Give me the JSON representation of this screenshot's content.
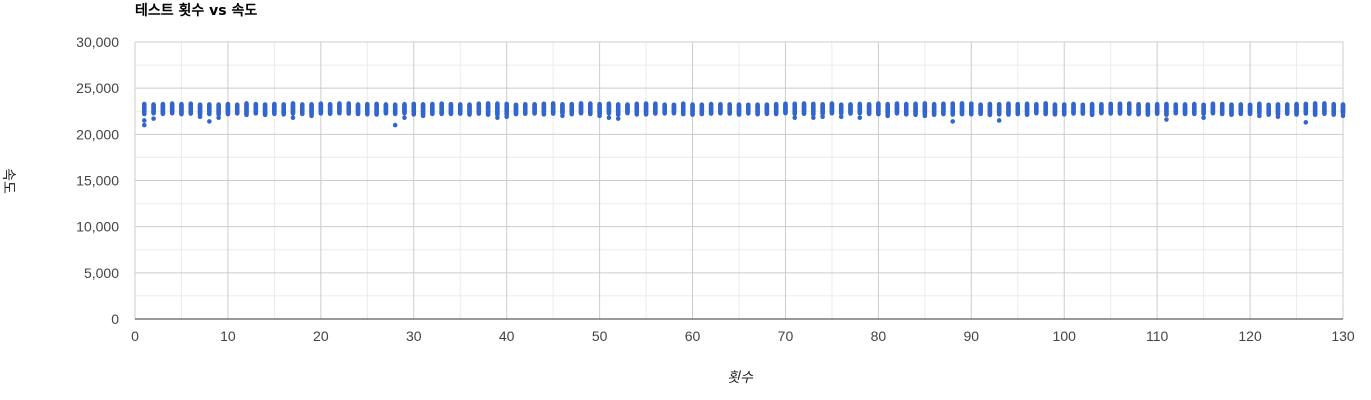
{
  "chart_data": {
    "type": "scatter",
    "title": "테스트 횟수 vs 속도",
    "xlabel": "횟수",
    "ylabel": "속도",
    "xlim": [
      0,
      130
    ],
    "ylim": [
      0,
      30000
    ],
    "x_ticks": [
      0,
      10,
      20,
      30,
      40,
      50,
      60,
      70,
      80,
      90,
      100,
      110,
      120,
      130
    ],
    "y_ticks": [
      0,
      5000,
      10000,
      15000,
      20000,
      25000,
      30000
    ],
    "x_tick_labels": [
      "0",
      "10",
      "20",
      "30",
      "40",
      "50",
      "60",
      "70",
      "80",
      "90",
      "100",
      "110",
      "120",
      "130"
    ],
    "y_tick_labels": [
      "0",
      "5,000",
      "10,000",
      "15,000",
      "20,000",
      "25,000",
      "30,000"
    ],
    "grid": true,
    "legend": "none",
    "point_color": "#3366cc",
    "series": [
      {
        "band": [
          22300,
          23200
        ],
        "outliers": [
          [
            1,
            21000
          ],
          [
            1,
            21500
          ],
          [
            2,
            21700
          ],
          [
            7,
            21900
          ],
          [
            8,
            21400
          ],
          [
            9,
            21800
          ],
          [
            17,
            21800
          ],
          [
            19,
            22000
          ],
          [
            28,
            21000
          ],
          [
            29,
            21800
          ],
          [
            31,
            22000
          ],
          [
            39,
            21800
          ],
          [
            40,
            21900
          ],
          [
            46,
            22000
          ],
          [
            50,
            22000
          ],
          [
            51,
            21800
          ],
          [
            52,
            21700
          ],
          [
            71,
            21800
          ],
          [
            73,
            21800
          ],
          [
            74,
            21900
          ],
          [
            76,
            21900
          ],
          [
            78,
            21800
          ],
          [
            81,
            22000
          ],
          [
            85,
            22000
          ],
          [
            88,
            21400
          ],
          [
            93,
            21500
          ],
          [
            111,
            21600
          ],
          [
            115,
            21800
          ],
          [
            121,
            22000
          ],
          [
            123,
            21900
          ],
          [
            126,
            21300
          ],
          [
            130,
            22000
          ]
        ]
      }
    ]
  }
}
